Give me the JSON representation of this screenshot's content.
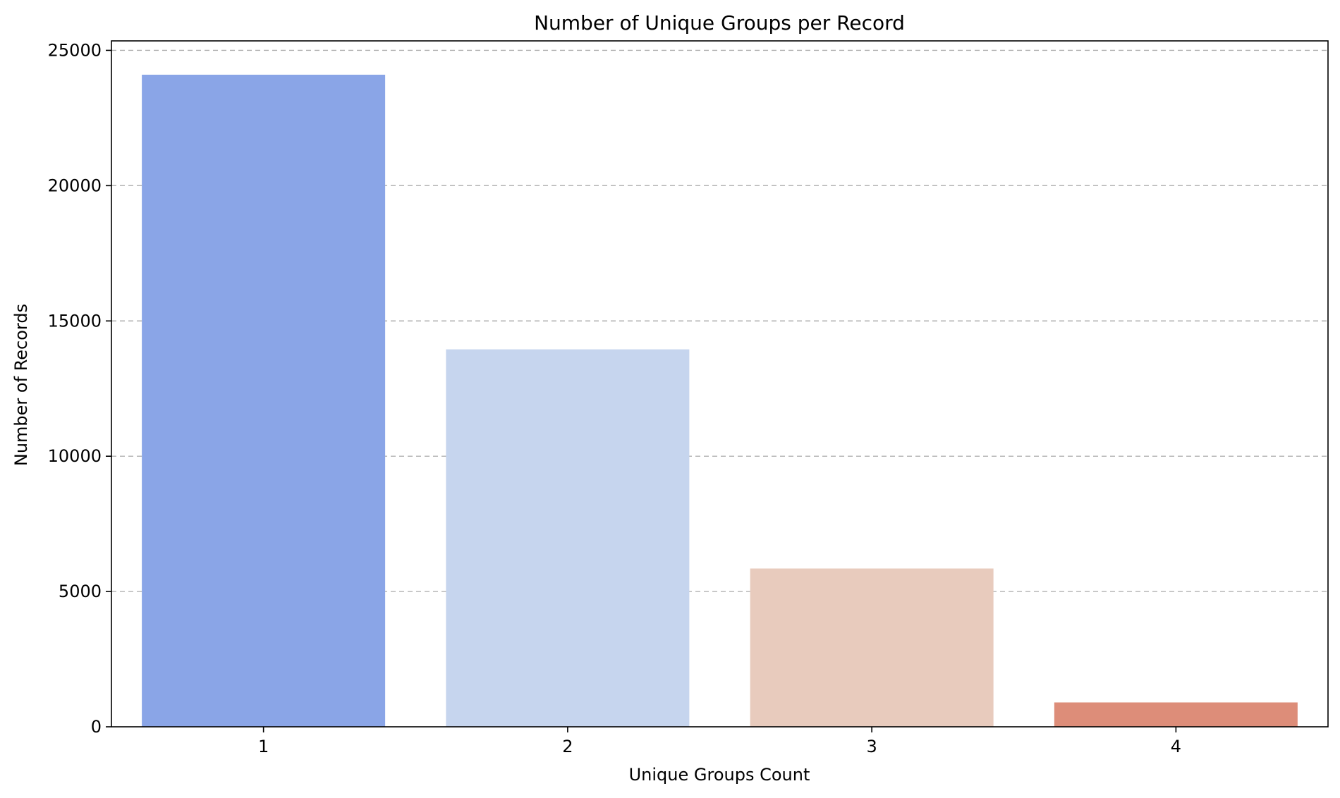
{
  "chart_data": {
    "type": "bar",
    "title": "Number of Unique Groups per Record",
    "xlabel": "Unique Groups Count",
    "ylabel": "Number of Records",
    "categories": [
      "1",
      "2",
      "3",
      "4"
    ],
    "values": [
      24100,
      13950,
      5850,
      900
    ],
    "bar_colors": [
      "#8aa5e7",
      "#c6d5ee",
      "#e8cbbd",
      "#dd8d79"
    ],
    "ylim": [
      0,
      25350
    ],
    "yticks": [
      0,
      5000,
      10000,
      15000,
      20000,
      25000
    ],
    "grid": "y-dashed",
    "grid_color": "#b0b0b0"
  }
}
